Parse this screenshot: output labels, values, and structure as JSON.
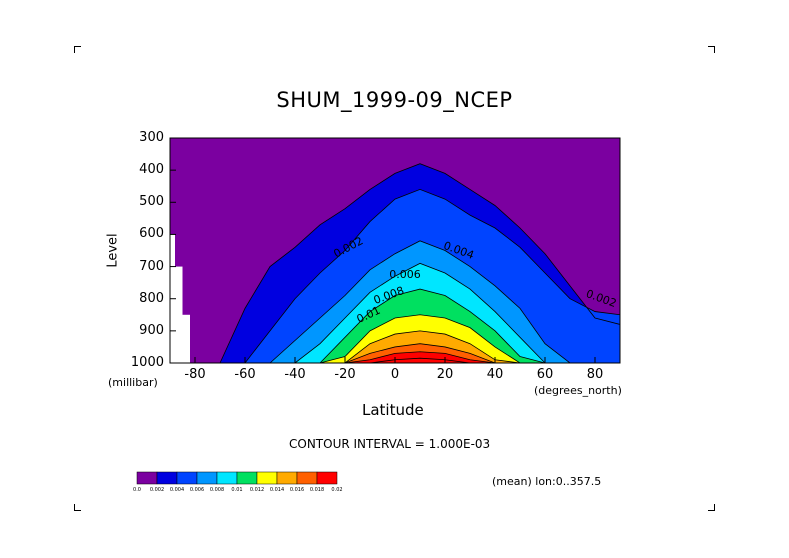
{
  "chart_data": {
    "type": "heatmap",
    "title": "SHUM_1999-09_NCEP",
    "xlabel": "Latitude",
    "ylabel": "Level",
    "x_units": "(degrees_north)",
    "y_units": "(millibar)",
    "xlim": [
      -90,
      90
    ],
    "ylim": [
      1000,
      300
    ],
    "x_ticks": [
      "-80",
      "-60",
      "-40",
      "-20",
      "0",
      "20",
      "40",
      "60",
      "80"
    ],
    "x_tick_values": [
      -80,
      -60,
      -40,
      -20,
      0,
      20,
      40,
      60,
      80
    ],
    "y_ticks": [
      "300",
      "400",
      "500",
      "600",
      "700",
      "800",
      "900",
      "1000"
    ],
    "y_tick_values": [
      300,
      400,
      500,
      600,
      700,
      800,
      900,
      1000
    ],
    "contour_interval_text": "CONTOUR INTERVAL = 1.000E-03",
    "mean_text": "(mean) lon:0..357.5",
    "contour_labels": [
      "0.002",
      "0.004",
      "0.006",
      "0.008",
      "0.01",
      "0.002"
    ],
    "colorbar": {
      "labels": [
        "0.0",
        "0.002",
        "0.004",
        "0.006",
        "0.008",
        "0.01",
        "0.012",
        "0.014",
        "0.016",
        "0.018",
        "0.02"
      ],
      "colors": [
        "#7b00a0",
        "#0000e0",
        "#0044ff",
        "#0096ff",
        "#00e6ff",
        "#00e060",
        "#ffff00",
        "#ffaa00",
        "#ff6000",
        "#ff0000"
      ]
    },
    "boundaries": {
      "lat": [
        -90,
        -80,
        -70,
        -60,
        -50,
        -40,
        -30,
        -20,
        -10,
        0,
        10,
        20,
        30,
        40,
        50,
        60,
        70,
        80,
        90
      ],
      "levels": [
        {
          "value": 0.001,
          "p": [
            1000,
            1000,
            1000,
            830,
            700,
            640,
            570,
            520,
            460,
            410,
            380,
            410,
            460,
            510,
            580,
            660,
            760,
            860,
            880
          ]
        },
        {
          "value": 0.002,
          "p": [
            1000,
            1000,
            1000,
            1000,
            900,
            800,
            720,
            650,
            560,
            490,
            460,
            490,
            540,
            580,
            640,
            720,
            800,
            840,
            850
          ]
        },
        {
          "value": 0.004,
          "p": [
            1000,
            1000,
            1000,
            1000,
            1000,
            930,
            860,
            790,
            710,
            660,
            620,
            650,
            700,
            760,
            830,
            940,
            1000,
            1000,
            1000
          ]
        },
        {
          "value": 0.006,
          "p": [
            1000,
            1000,
            1000,
            1000,
            1000,
            1000,
            940,
            860,
            780,
            730,
            690,
            720,
            770,
            840,
            920,
            1000,
            1000,
            1000,
            1000
          ]
        },
        {
          "value": 0.008,
          "p": [
            1000,
            1000,
            1000,
            1000,
            1000,
            1000,
            1000,
            920,
            840,
            790,
            770,
            790,
            840,
            900,
            980,
            1000,
            1000,
            1000,
            1000
          ]
        },
        {
          "value": 0.01,
          "p": [
            1000,
            1000,
            1000,
            1000,
            1000,
            1000,
            1000,
            980,
            900,
            860,
            850,
            860,
            890,
            950,
            1000,
            1000,
            1000,
            1000,
            1000
          ]
        },
        {
          "value": 0.012,
          "p": [
            1000,
            1000,
            1000,
            1000,
            1000,
            1000,
            1000,
            1000,
            940,
            910,
            900,
            910,
            940,
            990,
            1000,
            1000,
            1000,
            1000,
            1000
          ]
        },
        {
          "value": 0.014,
          "p": [
            1000,
            1000,
            1000,
            1000,
            1000,
            1000,
            1000,
            1000,
            970,
            950,
            940,
            950,
            970,
            1000,
            1000,
            1000,
            1000,
            1000,
            1000
          ]
        },
        {
          "value": 0.016,
          "p": [
            1000,
            1000,
            1000,
            1000,
            1000,
            1000,
            1000,
            1000,
            990,
            970,
            965,
            970,
            990,
            1000,
            1000,
            1000,
            1000,
            1000,
            1000
          ]
        },
        {
          "value": 0.018,
          "p": [
            1000,
            1000,
            1000,
            1000,
            1000,
            1000,
            1000,
            1000,
            1000,
            990,
            985,
            990,
            1000,
            1000,
            1000,
            1000,
            1000,
            1000,
            1000
          ]
        }
      ]
    },
    "missing_data": [
      {
        "lat": [
          -90,
          -88
        ],
        "p": [
          600,
          1000
        ]
      },
      {
        "lat": [
          -88,
          -85
        ],
        "p": [
          700,
          1000
        ]
      },
      {
        "lat": [
          -85,
          -82
        ],
        "p": [
          850,
          1000
        ]
      }
    ],
    "grid": false
  }
}
